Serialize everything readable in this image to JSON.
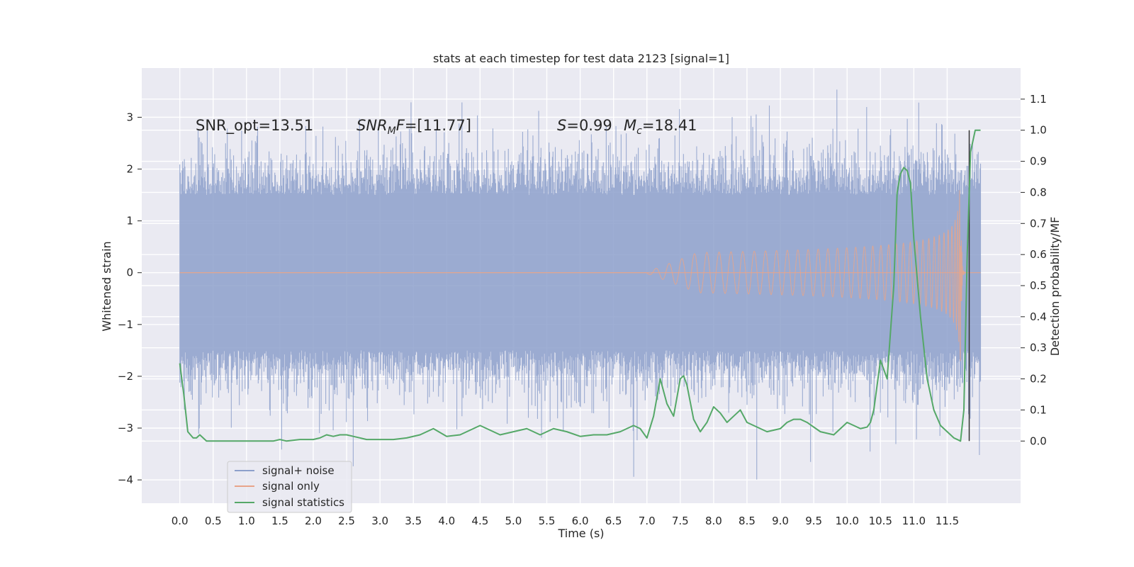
{
  "chart_data": {
    "type": "line",
    "title": "stats at each timestep for test data 2123 [signal=1]",
    "xlabel": "Time (s)",
    "ylabel": "Whitened strain",
    "ylabel_right": "Detection probability/MF",
    "xlim": [
      -0.57,
      12.6
    ],
    "ylim": [
      -4.45,
      3.95
    ],
    "ylim_right": [
      -0.2,
      1.2
    ],
    "x_ticks": [
      "0.0",
      "0.5",
      "1.0",
      "1.5",
      "2.0",
      "2.5",
      "3.0",
      "3.5",
      "4.0",
      "4.5",
      "5.0",
      "5.5",
      "6.0",
      "6.5",
      "7.0",
      "7.5",
      "8.0",
      "8.5",
      "9.0",
      "9.5",
      "10.0",
      "10.5",
      "11.0",
      "11.5"
    ],
    "y_ticks": [
      "3",
      "2",
      "1",
      "0",
      "−1",
      "−2",
      "−3",
      "−4"
    ],
    "y_ticks_right": [
      "1.1",
      "1.0",
      "0.9",
      "0.8",
      "0.7",
      "0.6",
      "0.5",
      "0.4",
      "0.3",
      "0.2",
      "0.1",
      "0.0"
    ],
    "grid": true,
    "legend_position": "lower-left",
    "annotations": {
      "snr_opt": "SNR_opt=13.51",
      "snr_mf_label": "SNR",
      "snr_mf_sub": "M",
      "snr_mf_mid": "F",
      "snr_mf_value": "=[11.77]",
      "s_label": "S",
      "s_value": "=0.99",
      "mc_label": "M",
      "mc_sub": "c",
      "mc_value": "=18.41"
    },
    "marker_time": 11.83,
    "series": [
      {
        "name": "signal+ noise",
        "color": "#8da0cb",
        "axis": "left",
        "t_start": 0.0,
        "t_end": 12.0,
        "typical_amplitude": 1.5,
        "peak_max": 3.6,
        "peak_min": -4.2
      },
      {
        "name": "signal only",
        "color": "#e8a48a",
        "axis": "left",
        "chirp_start": 7.0,
        "merger_time": 11.7,
        "peak_amplitude": 2.35
      },
      {
        "name": "signal statistics",
        "color": "#55a868",
        "axis": "right",
        "x": [
          0.0,
          0.06,
          0.12,
          0.2,
          0.25,
          0.3,
          0.4,
          0.5,
          0.6,
          0.8,
          1.0,
          1.2,
          1.4,
          1.5,
          1.6,
          1.8,
          2.0,
          2.1,
          2.2,
          2.3,
          2.4,
          2.5,
          2.6,
          2.8,
          3.0,
          3.2,
          3.4,
          3.6,
          3.8,
          4.0,
          4.2,
          4.4,
          4.5,
          4.6,
          4.8,
          5.0,
          5.2,
          5.4,
          5.6,
          5.8,
          6.0,
          6.2,
          6.4,
          6.6,
          6.8,
          6.9,
          7.0,
          7.1,
          7.2,
          7.3,
          7.4,
          7.5,
          7.55,
          7.6,
          7.7,
          7.8,
          7.9,
          8.0,
          8.1,
          8.2,
          8.3,
          8.4,
          8.5,
          8.6,
          8.8,
          9.0,
          9.1,
          9.2,
          9.3,
          9.4,
          9.6,
          9.8,
          9.9,
          10.0,
          10.1,
          10.2,
          10.3,
          10.35,
          10.4,
          10.5,
          10.6,
          10.7,
          10.75,
          10.8,
          10.85,
          10.9,
          10.95,
          11.0,
          11.1,
          11.2,
          11.3,
          11.4,
          11.5,
          11.6,
          11.65,
          11.7,
          11.75,
          11.8,
          11.85,
          11.92,
          12.0
        ],
        "values": [
          0.25,
          0.15,
          0.03,
          0.01,
          0.01,
          0.02,
          0.0,
          0.0,
          0.0,
          0.0,
          0.0,
          0.0,
          0.0,
          0.005,
          0.0,
          0.005,
          0.005,
          0.01,
          0.02,
          0.015,
          0.02,
          0.02,
          0.015,
          0.005,
          0.005,
          0.005,
          0.01,
          0.02,
          0.04,
          0.015,
          0.02,
          0.04,
          0.05,
          0.04,
          0.02,
          0.03,
          0.04,
          0.02,
          0.04,
          0.03,
          0.015,
          0.02,
          0.02,
          0.03,
          0.05,
          0.04,
          0.01,
          0.08,
          0.2,
          0.12,
          0.08,
          0.2,
          0.21,
          0.18,
          0.07,
          0.03,
          0.06,
          0.11,
          0.09,
          0.06,
          0.08,
          0.1,
          0.06,
          0.05,
          0.03,
          0.04,
          0.06,
          0.07,
          0.07,
          0.06,
          0.03,
          0.02,
          0.04,
          0.06,
          0.05,
          0.04,
          0.045,
          0.06,
          0.1,
          0.26,
          0.2,
          0.5,
          0.8,
          0.86,
          0.88,
          0.87,
          0.83,
          0.65,
          0.4,
          0.2,
          0.1,
          0.05,
          0.03,
          0.01,
          0.005,
          0.0,
          0.1,
          0.6,
          0.93,
          1.0,
          1.0
        ]
      }
    ]
  }
}
